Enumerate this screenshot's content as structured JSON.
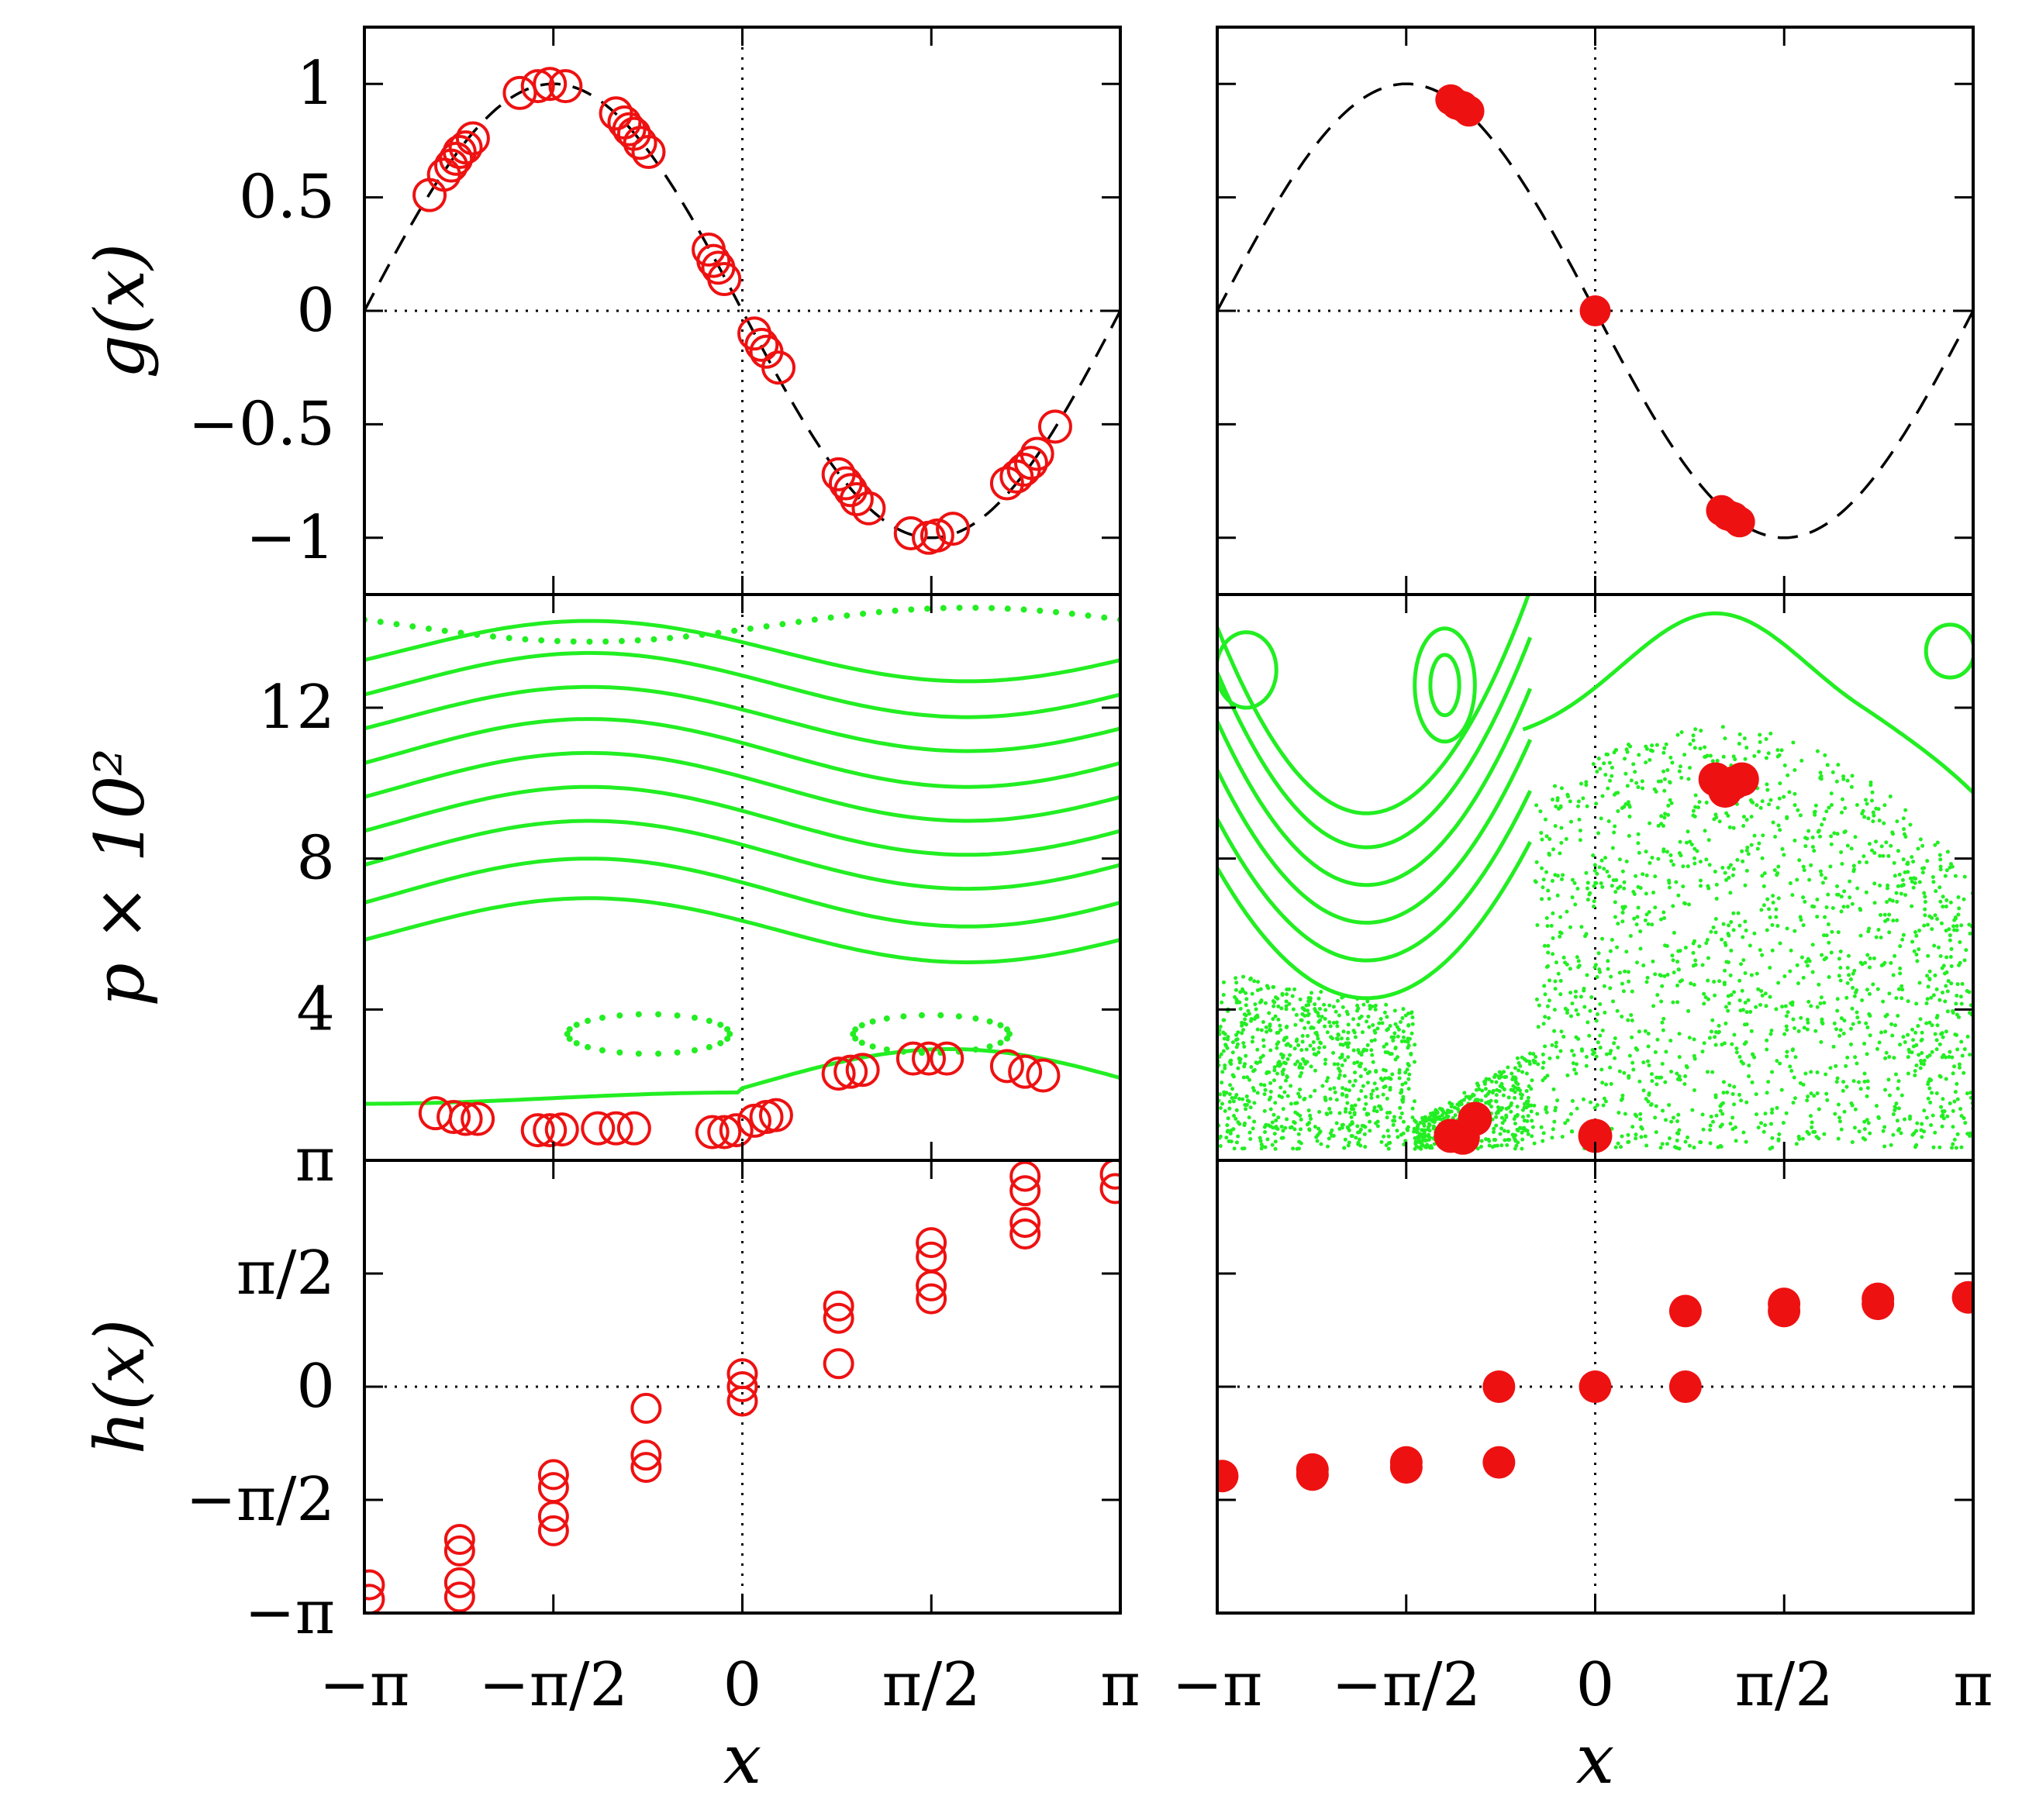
{
  "chart_data": {
    "type": "scatter",
    "description_layout": "2 columns x 3 rows grid, shared axes",
    "x_axis": {
      "label": "x",
      "range": [
        -3.14159,
        3.14159
      ],
      "ticks": [
        -3.14159,
        -1.5708,
        0,
        1.5708,
        3.14159
      ],
      "tick_labels": [
        "−π",
        "−π/2",
        "0",
        "π/2",
        "π"
      ]
    },
    "rows": [
      {
        "id": "g",
        "ylabel": "g(x)",
        "ylim": [
          -1.25,
          1.25
        ],
        "ticks": [
          -1,
          -0.5,
          0,
          0.5,
          1
        ],
        "tick_labels": [
          "−1",
          "−0.5",
          "0",
          "0.5",
          "1"
        ],
        "reference_line": "y = 0",
        "model_curve": "g(x) = -sin(x), dashed black"
      },
      {
        "id": "p",
        "ylabel": "p × 10²",
        "ylim": [
          0,
          15
        ],
        "ticks": [
          4,
          8,
          12
        ],
        "tick_labels": [
          "4",
          "8",
          "12"
        ]
      },
      {
        "id": "h",
        "ylabel": "h(x)",
        "ylim": [
          -3.14159,
          3.14159
        ],
        "ticks": [
          -3.14159,
          -1.5708,
          0,
          1.5708,
          3.14159
        ],
        "tick_labels": [
          "−π",
          "−π/2",
          "0",
          "π/2",
          "π"
        ],
        "reference_line": "y = 0"
      }
    ],
    "left": {
      "g_points_open": [
        [
          -2.6,
          0.51
        ],
        [
          -2.48,
          0.6
        ],
        [
          -2.42,
          0.64
        ],
        [
          -2.38,
          0.67
        ],
        [
          -2.35,
          0.7
        ],
        [
          -2.3,
          0.72
        ],
        [
          -2.24,
          0.76
        ],
        [
          -1.85,
          0.96
        ],
        [
          -1.7,
          0.99
        ],
        [
          -1.6,
          1.0
        ],
        [
          -1.47,
          0.99
        ],
        [
          -1.05,
          0.87
        ],
        [
          -0.98,
          0.83
        ],
        [
          -0.94,
          0.8
        ],
        [
          -0.9,
          0.78
        ],
        [
          -0.85,
          0.74
        ],
        [
          -0.78,
          0.7
        ],
        [
          -0.28,
          0.27
        ],
        [
          -0.24,
          0.22
        ],
        [
          -0.2,
          0.19
        ],
        [
          -0.15,
          0.14
        ],
        [
          0.1,
          -0.1
        ],
        [
          0.16,
          -0.15
        ],
        [
          0.2,
          -0.18
        ],
        [
          0.3,
          -0.25
        ],
        [
          0.8,
          -0.72
        ],
        [
          0.86,
          -0.76
        ],
        [
          0.9,
          -0.79
        ],
        [
          0.95,
          -0.83
        ],
        [
          1.05,
          -0.87
        ],
        [
          1.4,
          -0.98
        ],
        [
          1.55,
          -1.0
        ],
        [
          1.62,
          -0.99
        ],
        [
          1.75,
          -0.96
        ],
        [
          2.2,
          -0.76
        ],
        [
          2.28,
          -0.73
        ],
        [
          2.34,
          -0.7
        ],
        [
          2.4,
          -0.67
        ],
        [
          2.45,
          -0.63
        ],
        [
          2.6,
          -0.51
        ]
      ],
      "p_orbits_x100": [
        2.3,
        6.1,
        7.1,
        8.1,
        9.0,
        9.9,
        10.8,
        11.7,
        12.6,
        13.5
      ],
      "p_orbit_amplitudes_x100": [
        0.45,
        0.85,
        0.9,
        0.9,
        0.9,
        0.9,
        0.9,
        0.85,
        0.85,
        0.8
      ],
      "p_islands_x100": [
        {
          "centre_x": -0.78,
          "centre_p": 3.35,
          "width": 1.35,
          "height": 1.05
        },
        {
          "centre_x": 1.57,
          "centre_p": 3.35,
          "width": 1.3,
          "height": 1.0
        }
      ],
      "p_dotted_top_x100": 14.2,
      "p_points_open_x100": [
        [
          -2.55,
          1.25
        ],
        [
          -2.4,
          1.15
        ],
        [
          -2.3,
          1.1
        ],
        [
          -2.2,
          1.1
        ],
        [
          -1.7,
          0.8
        ],
        [
          -1.6,
          0.8
        ],
        [
          -1.5,
          0.82
        ],
        [
          -1.2,
          0.85
        ],
        [
          -1.05,
          0.85
        ],
        [
          -0.9,
          0.85
        ],
        [
          -0.25,
          0.75
        ],
        [
          -0.15,
          0.75
        ],
        [
          -0.05,
          0.8
        ],
        [
          0.1,
          1.05
        ],
        [
          0.2,
          1.15
        ],
        [
          0.28,
          1.2
        ],
        [
          0.8,
          2.3
        ],
        [
          0.9,
          2.35
        ],
        [
          1.0,
          2.4
        ],
        [
          1.42,
          2.7
        ],
        [
          1.55,
          2.7
        ],
        [
          1.7,
          2.7
        ],
        [
          2.2,
          2.5
        ],
        [
          2.35,
          2.35
        ],
        [
          2.5,
          2.25
        ]
      ],
      "h_points_open": [
        [
          -3.1,
          -2.95
        ],
        [
          -3.1,
          -2.75
        ],
        [
          -2.35,
          -2.92
        ],
        [
          -2.35,
          -2.72
        ],
        [
          -2.35,
          -2.28
        ],
        [
          -2.35,
          -2.12
        ],
        [
          -1.57,
          -2.0
        ],
        [
          -1.57,
          -1.8
        ],
        [
          -1.57,
          -1.4
        ],
        [
          -1.57,
          -1.22
        ],
        [
          -0.8,
          -1.12
        ],
        [
          -0.8,
          -0.95
        ],
        [
          -0.8,
          -0.3
        ],
        [
          0.0,
          -0.2
        ],
        [
          0.0,
          0.0
        ],
        [
          0.0,
          0.18
        ],
        [
          0.8,
          0.32
        ],
        [
          0.8,
          0.95
        ],
        [
          0.8,
          1.12
        ],
        [
          1.57,
          1.22
        ],
        [
          1.57,
          1.4
        ],
        [
          1.57,
          1.8
        ],
        [
          1.57,
          2.0
        ],
        [
          2.35,
          2.12
        ],
        [
          2.35,
          2.28
        ],
        [
          2.35,
          2.72
        ],
        [
          2.35,
          2.92
        ],
        [
          3.1,
          2.75
        ],
        [
          3.1,
          2.95
        ]
      ]
    },
    "right": {
      "g_points_filled": [
        [
          -1.2,
          0.93
        ],
        [
          -1.15,
          0.91
        ],
        [
          -1.1,
          0.9
        ],
        [
          -1.05,
          0.88
        ],
        [
          0.0,
          0.0
        ],
        [
          1.05,
          -0.88
        ],
        [
          1.1,
          -0.9
        ],
        [
          1.15,
          -0.91
        ],
        [
          1.2,
          -0.93
        ]
      ],
      "p_points_filled_x100": [
        [
          -1.2,
          0.65
        ],
        [
          -1.1,
          0.6
        ],
        [
          -1.0,
          1.1
        ],
        [
          0.0,
          0.65
        ],
        [
          1.0,
          10.1
        ],
        [
          1.08,
          9.8
        ],
        [
          1.15,
          10.0
        ],
        [
          1.22,
          10.1
        ]
      ],
      "p_chaotic_sea": "dense scattered green dots filling region below ~11.5 for x > -0.5 and below ~5 for x < -1.5",
      "p_top_chaos": "region above, regular green orbits and islands",
      "h_points_filled": [
        [
          -3.1,
          -1.24
        ],
        [
          -2.35,
          -1.22
        ],
        [
          -2.35,
          -1.15
        ],
        [
          -1.57,
          -1.12
        ],
        [
          -1.57,
          -1.05
        ],
        [
          -0.8,
          -1.05
        ],
        [
          -0.8,
          0.0
        ],
        [
          0.0,
          0.0
        ],
        [
          0.75,
          0.0
        ],
        [
          0.75,
          1.05
        ],
        [
          1.57,
          1.05
        ],
        [
          1.57,
          1.15
        ],
        [
          2.35,
          1.15
        ],
        [
          2.35,
          1.22
        ],
        [
          3.1,
          1.24
        ]
      ]
    }
  }
}
